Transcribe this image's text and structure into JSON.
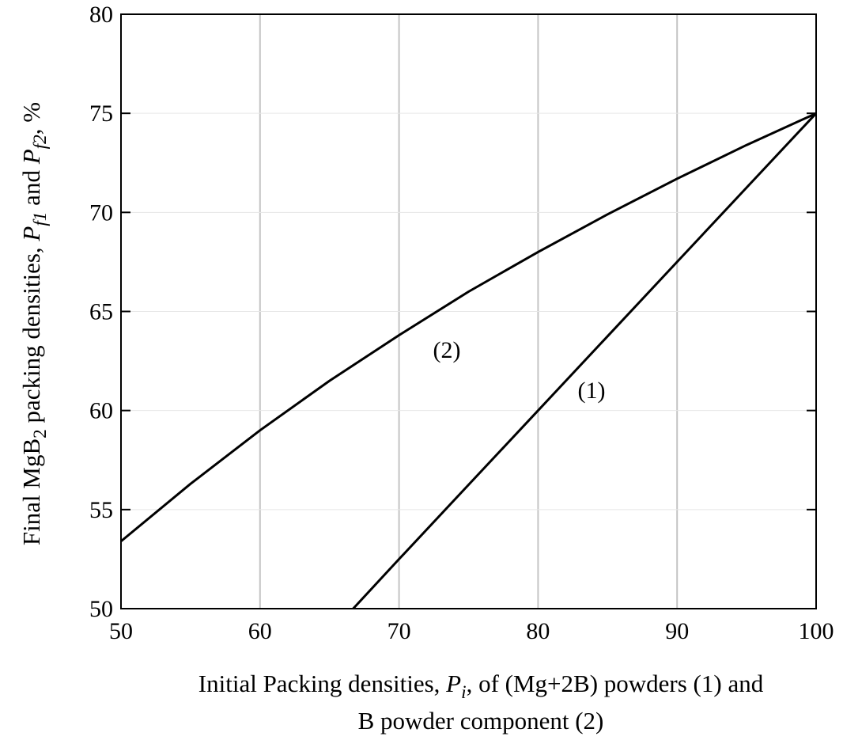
{
  "chart_data": {
    "type": "line",
    "xlim": [
      50,
      100
    ],
    "ylim": [
      50,
      80
    ],
    "xticks": [
      50,
      60,
      70,
      80,
      90,
      100
    ],
    "yticks": [
      50,
      55,
      60,
      65,
      70,
      75,
      80
    ],
    "grid": "vertical",
    "xlabel": {
      "line1_pre": "Initial Packing densities, ",
      "var": "P",
      "sub": "i",
      "line1_post": ", of (Mg+2B) powders (1) and",
      "line2": "B powder component (2)"
    },
    "ylabel": {
      "pre": "Final MgB",
      "sub_mg": "2",
      "mid": " packing densities, ",
      "var1": "P",
      "sub1": "f1",
      "and": " and ",
      "var2": "P",
      "sub2": "f2",
      "post": ", %"
    },
    "series": [
      {
        "label": "(1)",
        "x": [
          66.7,
          70,
          75,
          80,
          85,
          90,
          95,
          100
        ],
        "y": [
          50.0,
          52.5,
          56.25,
          60.0,
          63.75,
          67.5,
          71.25,
          75.0
        ]
      },
      {
        "label": "(2)",
        "x": [
          50,
          55,
          60,
          65,
          70,
          75,
          80,
          85,
          90,
          95,
          100
        ],
        "y": [
          53.4,
          56.3,
          59.0,
          61.5,
          63.8,
          66.0,
          68.0,
          69.9,
          71.7,
          73.4,
          75.0
        ]
      }
    ]
  }
}
